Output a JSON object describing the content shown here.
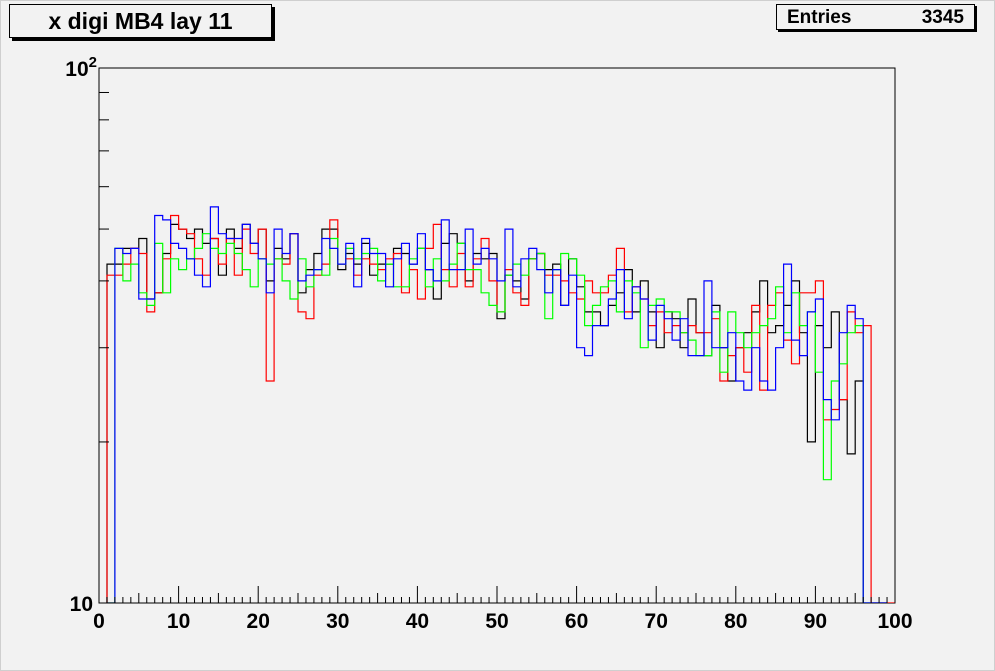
{
  "chart_data": {
    "type": "step",
    "title": "x digi MB4 lay 11",
    "stats": {
      "label": "Entries",
      "value": "3345"
    },
    "x_ticks": [
      "0",
      "10",
      "20",
      "30",
      "40",
      "50",
      "60",
      "70",
      "80",
      "90",
      "100"
    ],
    "y_ticks": [
      {
        "base": "10",
        "exp": "",
        "value": 10
      },
      {
        "base": "10",
        "exp": "2",
        "value": 100
      }
    ],
    "xlim": [
      0,
      100
    ],
    "ylim": [
      10,
      100
    ],
    "y_scale": "log",
    "grid": false,
    "x_start": 1,
    "bin_width": 1,
    "series": [
      {
        "color": "#000000",
        "values": [
          43,
          43,
          46,
          46,
          48,
          37,
          38,
          45,
          51,
          50,
          48,
          50,
          47,
          48,
          41,
          50,
          46,
          51,
          47,
          50,
          40,
          46,
          44,
          49,
          38,
          42,
          45,
          50,
          50,
          42,
          45,
          43,
          47,
          41,
          43,
          43,
          46,
          45,
          43,
          46,
          42,
          37,
          47,
          49,
          47,
          40,
          45,
          44,
          45,
          34,
          41,
          40,
          37,
          44,
          45,
          42,
          43,
          36,
          44,
          39,
          35,
          35,
          33,
          36,
          38,
          42,
          35,
          40,
          35,
          30,
          35,
          34,
          30,
          37,
          32,
          29,
          36,
          30,
          26,
          30,
          32,
          35,
          40,
          32,
          33,
          36,
          40,
          32,
          20,
          33,
          30,
          35,
          24,
          19,
          26,
          9,
          9,
          9
        ]
      },
      {
        "color": "#ff0000",
        "values": [
          41,
          41,
          43,
          46,
          45,
          35,
          38,
          44,
          53,
          50,
          49,
          44,
          41,
          48,
          43,
          48,
          41,
          50,
          45,
          50,
          26,
          44,
          43,
          49,
          35,
          34,
          41,
          43,
          52,
          43,
          44,
          41,
          44,
          43,
          42,
          44,
          45,
          38,
          42,
          37,
          46,
          51,
          42,
          39,
          45,
          39,
          44,
          48,
          40,
          35,
          42,
          38,
          36,
          44,
          45,
          41,
          41,
          40,
          38,
          37,
          40,
          38,
          38,
          41,
          46,
          35,
          39,
          37,
          33,
          35,
          32,
          33,
          32,
          33,
          32,
          32,
          34,
          26,
          29,
          30,
          27,
          36,
          25,
          36,
          38,
          31,
          28,
          38,
          38,
          40,
          22,
          23,
          24,
          35,
          32,
          33,
          9,
          9,
          9
        ]
      },
      {
        "color": "#00ff00",
        "values": [
          10,
          46,
          40,
          43,
          38,
          36,
          47,
          38,
          44,
          42,
          44,
          46,
          49,
          46,
          45,
          47,
          45,
          42,
          39,
          44,
          43,
          44,
          40,
          37,
          44,
          39,
          42,
          41,
          48,
          43,
          46,
          44,
          45,
          46,
          40,
          43,
          39,
          39,
          44,
          46,
          39,
          44,
          40,
          43,
          47,
          42,
          42,
          38,
          36,
          35,
          41,
          43,
          41,
          44,
          45,
          34,
          42,
          45,
          44,
          41,
          33,
          36,
          39,
          40,
          35,
          40,
          38,
          30,
          36,
          37,
          35,
          35,
          32,
          31,
          29,
          29,
          35,
          27,
          35,
          32,
          30,
          32,
          33,
          34,
          39,
          32,
          38,
          33,
          35,
          27,
          17,
          26,
          28,
          32,
          33,
          9,
          9,
          9
        ]
      },
      {
        "color": "#0000ff",
        "values": [
          9,
          46,
          45,
          46,
          37,
          37,
          53,
          52,
          47,
          46,
          44,
          41,
          39,
          55,
          49,
          48,
          48,
          51,
          47,
          44,
          38,
          50,
          45,
          49,
          40,
          41,
          42,
          48,
          46,
          43,
          47,
          39,
          48,
          45,
          45,
          39,
          44,
          47,
          43,
          49,
          42,
          40,
          52,
          42,
          42,
          50,
          43,
          46,
          44,
          40,
          50,
          39,
          44,
          46,
          42,
          38,
          42,
          36,
          41,
          30,
          29,
          33,
          33,
          37,
          42,
          34,
          39,
          37,
          31,
          36,
          34,
          31,
          34,
          29,
          29,
          40,
          30,
          30,
          32,
          26,
          25,
          30,
          26,
          25,
          30,
          43,
          31,
          29,
          35,
          37,
          24,
          22,
          32,
          36,
          34,
          9,
          9,
          9
        ]
      }
    ]
  }
}
